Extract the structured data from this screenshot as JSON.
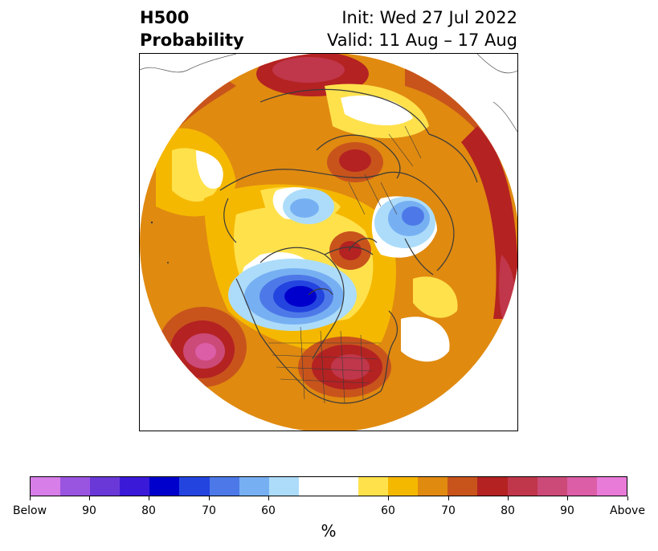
{
  "title": {
    "left_line1": "H500",
    "left_line2": "Probability",
    "right_line1": "Init: Wed 27 Jul 2022",
    "right_line2": "Valid: 11 Aug – 17 Aug"
  },
  "colorbar": {
    "unit": "%",
    "tick_labels": [
      "Below",
      "90",
      "80",
      "70",
      "60",
      "60",
      "70",
      "80",
      "90",
      "Above"
    ],
    "colors": [
      "#d77ee8",
      "#9a55e0",
      "#6b38d8",
      "#3a1ad8",
      "#0000cc",
      "#2444e0",
      "#4d79e8",
      "#77b0f2",
      "#acdcfa",
      "#ffffff",
      "#ffe14c",
      "#f5b800",
      "#e08a10",
      "#c8541c",
      "#b42222",
      "#c0364a",
      "#cc4a78",
      "#db5ea6",
      "#e87ad8"
    ]
  },
  "map": {
    "projection": "north-polar-stereographic",
    "background": "#ffffff",
    "warm_base": "#e08a10",
    "anomaly_regions": [
      {
        "name": "warm-arctic-top",
        "colors": [
          "#c8541c",
          "#b42222",
          "#c0364a"
        ]
      },
      {
        "name": "cold-alaska-canada",
        "colors": [
          "#acdcfa",
          "#77b0f2",
          "#4d79e8",
          "#2444e0",
          "#0000cc"
        ]
      },
      {
        "name": "cold-east-siberia",
        "colors": [
          "#acdcfa",
          "#77b0f2"
        ]
      },
      {
        "name": "cold-scandinavia",
        "colors": [
          "#acdcfa",
          "#77b0f2",
          "#4d79e8"
        ]
      },
      {
        "name": "warm-eastern-us",
        "colors": [
          "#c8541c",
          "#b42222",
          "#c0364a"
        ]
      },
      {
        "name": "warm-north-pacific",
        "colors": [
          "#c8541c",
          "#b42222",
          "#cc4a78",
          "#db5ea6"
        ]
      },
      {
        "name": "warm-europe-russia",
        "colors": [
          "#c8541c",
          "#b42222",
          "#c0364a"
        ]
      }
    ]
  }
}
